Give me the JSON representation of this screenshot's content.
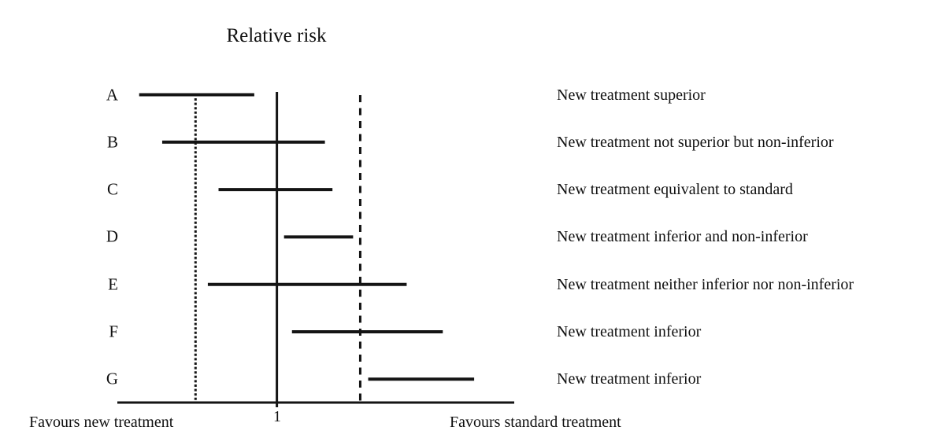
{
  "figure": {
    "background": "#ffffff",
    "ink_color": "#141414"
  },
  "chart_data": {
    "type": "forest",
    "title": "Relative risk",
    "x_axis": {
      "tick_label": "1",
      "tick_frac": 0.402,
      "left_caption": "Favours new treatment",
      "right_caption": "Favours standard treatment",
      "scale_note": "unlabelled linear relative-risk axis; positions stored as fractions 0-1 along axis"
    },
    "reference_lines": [
      {
        "name": "lower-margin-line",
        "style": "dotted",
        "frac": 0.197
      },
      {
        "name": "no-effect-line",
        "style": "solid",
        "frac": 0.402
      },
      {
        "name": "non-inferiority-margin-line",
        "style": "dashed",
        "frac": 0.612
      }
    ],
    "rows": [
      {
        "label": "A",
        "ci_lo": 0.055,
        "ci_hi": 0.345,
        "interpretation": "New treatment superior"
      },
      {
        "label": "B",
        "ci_lo": 0.113,
        "ci_hi": 0.523,
        "interpretation": "New treatment not superior but non-inferior"
      },
      {
        "label": "C",
        "ci_lo": 0.255,
        "ci_hi": 0.542,
        "interpretation": "New treatment equivalent to standard"
      },
      {
        "label": "D",
        "ci_lo": 0.42,
        "ci_hi": 0.594,
        "interpretation": "New treatment inferior and non-inferior"
      },
      {
        "label": "E",
        "ci_lo": 0.228,
        "ci_hi": 0.729,
        "interpretation": "New treatment neither inferior nor non-inferior"
      },
      {
        "label": "F",
        "ci_lo": 0.44,
        "ci_hi": 0.82,
        "interpretation": "New treatment inferior"
      },
      {
        "label": "G",
        "ci_lo": 0.632,
        "ci_hi": 0.899,
        "interpretation": "New treatment inferior"
      }
    ]
  }
}
